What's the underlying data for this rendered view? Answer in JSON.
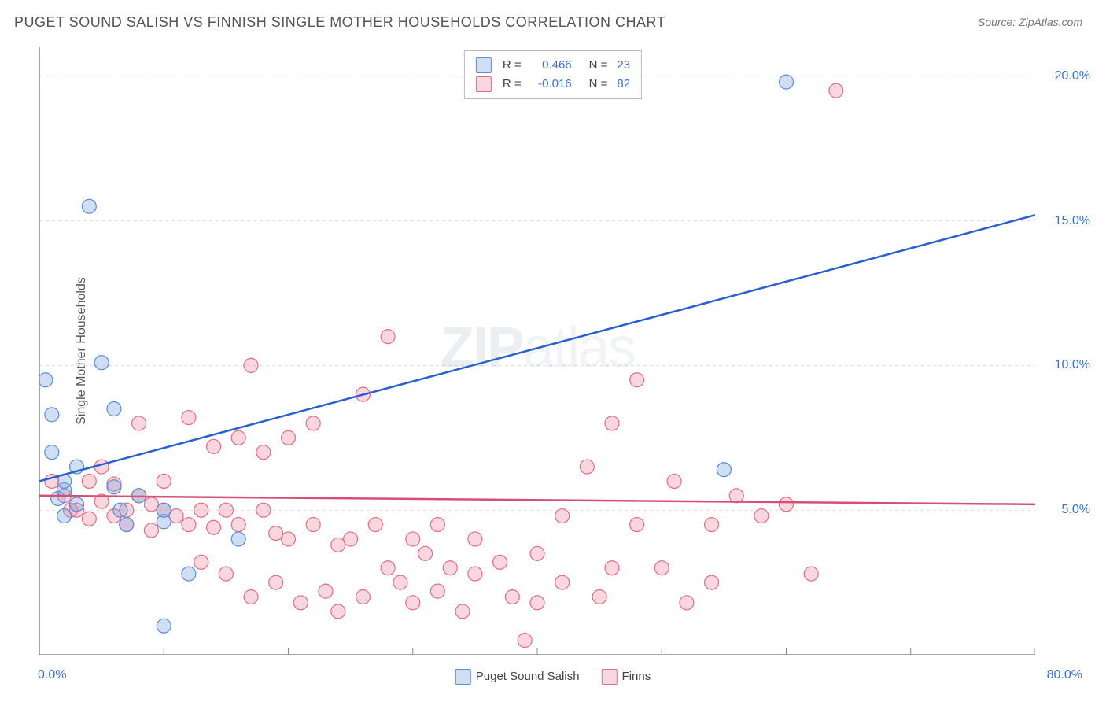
{
  "title": "PUGET SOUND SALISH VS FINNISH SINGLE MOTHER HOUSEHOLDS CORRELATION CHART",
  "source": "Source: ZipAtlas.com",
  "ylabel": "Single Mother Households",
  "watermark": {
    "bold": "ZIP",
    "rest": "atlas"
  },
  "chart": {
    "type": "scatter",
    "xlim": [
      0,
      80
    ],
    "ylim": [
      0,
      21
    ],
    "x_origin_label": "0.0%",
    "x_max_label": "80.0%",
    "yticks": [
      {
        "v": 5,
        "label": "5.0%"
      },
      {
        "v": 10,
        "label": "10.0%"
      },
      {
        "v": 15,
        "label": "15.0%"
      },
      {
        "v": 20,
        "label": "20.0%"
      }
    ],
    "xtick_step": 10,
    "grid_color": "#dddddd",
    "axis_color": "#888888",
    "background_color": "#ffffff",
    "marker_radius": 9,
    "marker_stroke_width": 1.2,
    "trend_line_width": 2.5,
    "series": [
      {
        "id": "salish",
        "label": "Puget Sound Salish",
        "fill": "rgba(120,160,220,0.35)",
        "stroke": "#5a8cd8",
        "trend_color": "#2a5fd0",
        "R": "0.466",
        "N": "23",
        "trend": {
          "x1": 0,
          "y1": 6.0,
          "x2": 80,
          "y2": 15.2
        },
        "points": [
          [
            0.5,
            9.5
          ],
          [
            1,
            8.3
          ],
          [
            1,
            7.0
          ],
          [
            1.5,
            5.4
          ],
          [
            2,
            4.8
          ],
          [
            2,
            5.7
          ],
          [
            3,
            5.2
          ],
          [
            4,
            15.5
          ],
          [
            5,
            10.1
          ],
          [
            6,
            8.5
          ],
          [
            6,
            5.8
          ],
          [
            6.5,
            5.0
          ],
          [
            7,
            4.5
          ],
          [
            8,
            5.5
          ],
          [
            10,
            5.0
          ],
          [
            10,
            4.6
          ],
          [
            10,
            1.0
          ],
          [
            12,
            2.8
          ],
          [
            16,
            4.0
          ],
          [
            55,
            6.4
          ],
          [
            60,
            19.8
          ],
          [
            2,
            6.0
          ],
          [
            3,
            6.5
          ]
        ]
      },
      {
        "id": "finns",
        "label": "Finns",
        "fill": "rgba(240,140,160,0.35)",
        "stroke": "#e26b88",
        "trend_color": "#d94f74",
        "R": "-0.016",
        "N": "82",
        "trend": {
          "x1": 0,
          "y1": 5.5,
          "x2": 80,
          "y2": 5.2
        },
        "points": [
          [
            1,
            6.0
          ],
          [
            2,
            5.5
          ],
          [
            2.5,
            5.0
          ],
          [
            3,
            5.0
          ],
          [
            4,
            6.0
          ],
          [
            4,
            4.7
          ],
          [
            5,
            5.3
          ],
          [
            5,
            6.5
          ],
          [
            6,
            4.8
          ],
          [
            6,
            5.9
          ],
          [
            7,
            5.0
          ],
          [
            7,
            4.5
          ],
          [
            8,
            5.5
          ],
          [
            8,
            8.0
          ],
          [
            9,
            5.2
          ],
          [
            9,
            4.3
          ],
          [
            10,
            6.0
          ],
          [
            10,
            5.0
          ],
          [
            11,
            4.8
          ],
          [
            12,
            8.2
          ],
          [
            12,
            4.5
          ],
          [
            13,
            5.0
          ],
          [
            13,
            3.2
          ],
          [
            14,
            4.4
          ],
          [
            14,
            7.2
          ],
          [
            15,
            2.8
          ],
          [
            15,
            5.0
          ],
          [
            16,
            7.5
          ],
          [
            16,
            4.5
          ],
          [
            17,
            10.0
          ],
          [
            17,
            2.0
          ],
          [
            18,
            5.0
          ],
          [
            18,
            7.0
          ],
          [
            19,
            4.2
          ],
          [
            19,
            2.5
          ],
          [
            20,
            7.5
          ],
          [
            20,
            4.0
          ],
          [
            21,
            1.8
          ],
          [
            22,
            8.0
          ],
          [
            22,
            4.5
          ],
          [
            23,
            2.2
          ],
          [
            24,
            3.8
          ],
          [
            24,
            1.5
          ],
          [
            25,
            4.0
          ],
          [
            26,
            9.0
          ],
          [
            26,
            2.0
          ],
          [
            27,
            4.5
          ],
          [
            28,
            11.0
          ],
          [
            28,
            3.0
          ],
          [
            29,
            2.5
          ],
          [
            30,
            4.0
          ],
          [
            30,
            1.8
          ],
          [
            31,
            3.5
          ],
          [
            32,
            2.2
          ],
          [
            32,
            4.5
          ],
          [
            33,
            3.0
          ],
          [
            34,
            1.5
          ],
          [
            35,
            2.8
          ],
          [
            35,
            4.0
          ],
          [
            37,
            3.2
          ],
          [
            38,
            2.0
          ],
          [
            39,
            0.5
          ],
          [
            40,
            3.5
          ],
          [
            40,
            1.8
          ],
          [
            42,
            2.5
          ],
          [
            42,
            4.8
          ],
          [
            44,
            6.5
          ],
          [
            45,
            2.0
          ],
          [
            46,
            3.0
          ],
          [
            46,
            8.0
          ],
          [
            48,
            9.5
          ],
          [
            48,
            4.5
          ],
          [
            50,
            3.0
          ],
          [
            51,
            6.0
          ],
          [
            52,
            1.8
          ],
          [
            54,
            4.5
          ],
          [
            54,
            2.5
          ],
          [
            56,
            5.5
          ],
          [
            58,
            4.8
          ],
          [
            60,
            5.2
          ],
          [
            62,
            2.8
          ],
          [
            64,
            19.5
          ]
        ]
      }
    ]
  },
  "labels": {
    "R_prefix": "R =",
    "N_prefix": "N ="
  }
}
